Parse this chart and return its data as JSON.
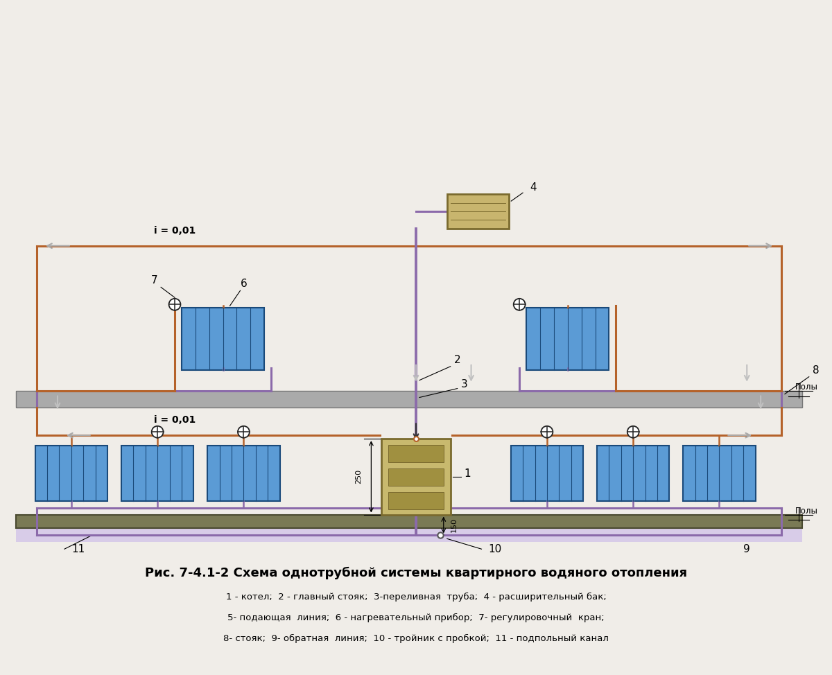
{
  "bg_color": "#f0ede8",
  "supply_color": "#b5622a",
  "return_color": "#8b6aaa",
  "radiator_fill": "#5b9bd5",
  "radiator_edge": "#1a4a7a",
  "floor_fill": "#7a7a55",
  "floor_edge": "#4a4a30",
  "ceil_fill": "#aaaaaa",
  "ceil_edge": "#777777",
  "boiler_fill": "#c8b96e",
  "boiler_edge": "#7a6a2e",
  "tank_fill": "#c8b56e",
  "tank_edge": "#7a6a2e",
  "channel_fill": "#d8cce8",
  "arrow_color": "#aaaaaa",
  "title": "Рис. 7-4.1-2 Схема однотрубной системы квартирного водяного отопления",
  "legend_line1": "1 - котел;  2 - главный стояк;  3-переливная  труба;  4 - расширительный бак;",
  "legend_line2": "5- подающая  линия;  6 - нагревательный прибор;  7- регулировочный  кран;",
  "legend_line3": "8- стояк;  9- обратная  линия;  10 - тройник с пробкой;  11 - подпольный канал"
}
